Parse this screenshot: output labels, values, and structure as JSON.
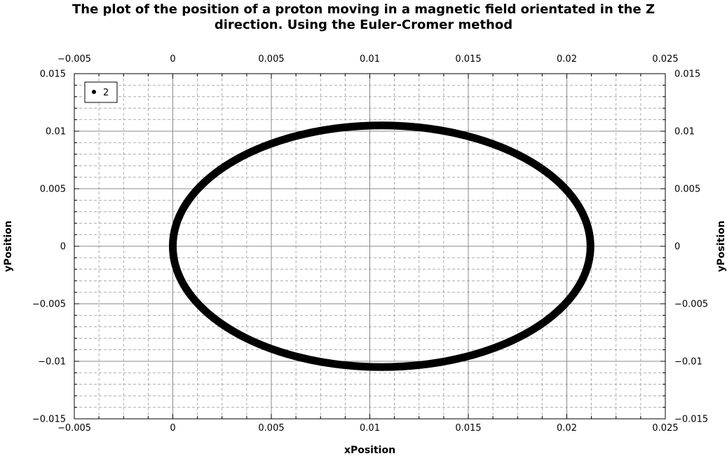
{
  "chart_data": {
    "type": "scatter",
    "title_lines": [
      "The plot of the position of a proton moving in a magnetic field orientated in the Z",
      "direction. Using the Euler-Cromer method"
    ],
    "xlabel": "xPosition",
    "ylabel": "yPosition",
    "xlim": [
      -0.005,
      0.025
    ],
    "ylim": [
      -0.015,
      0.015
    ],
    "xticks": [
      -0.005,
      0,
      0.005,
      0.01,
      0.015,
      0.02,
      0.025
    ],
    "xtick_labels": [
      "−0.005",
      "0",
      "0.005",
      "0.01",
      "0.015",
      "0.02",
      "0.025"
    ],
    "yticks": [
      -0.015,
      -0.01,
      -0.005,
      0,
      0.005,
      0.01,
      0.015
    ],
    "ytick_labels": [
      "−0.015",
      "−0.01",
      "−0.005",
      "0",
      "0.005",
      "0.01",
      "0.015"
    ],
    "grid": true,
    "legend": {
      "position": "top-left",
      "entries": [
        "2"
      ]
    },
    "series": [
      {
        "name": "2",
        "color": "#000000",
        "shape": "ellipse",
        "center": [
          0.0106,
          0.0
        ],
        "x_semi_axis": 0.0106,
        "y_semi_axis": 0.0105,
        "x_extent": [
          0.0,
          0.0212
        ],
        "y_extent": [
          -0.0105,
          0.0105
        ]
      }
    ]
  }
}
